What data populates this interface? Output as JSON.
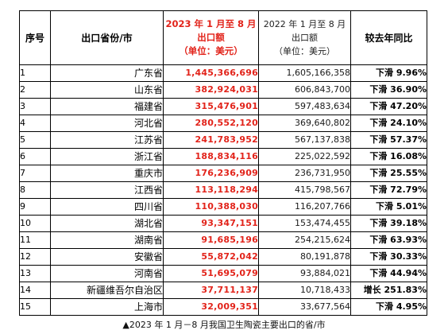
{
  "table": {
    "headers": {
      "seq": "序号",
      "province": "出口省份/市",
      "y2023": [
        "2023 年 1 月至 8 月",
        "出口额",
        "（单位：美元）"
      ],
      "y2022": [
        "2022 年 1 月至 8 月",
        "出口额",
        "（单位：美元）"
      ],
      "yoy": "较去年同比"
    },
    "rows": [
      {
        "seq": "1",
        "province": "广东省",
        "v2023": "1,445,366,696",
        "v2022": "1,605,166,358",
        "yoy": "下滑 9.96%"
      },
      {
        "seq": "2",
        "province": "山东省",
        "v2023": "382,924,031",
        "v2022": "606,843,700",
        "yoy": "下滑 36.90%"
      },
      {
        "seq": "3",
        "province": "福建省",
        "v2023": "315,476,901",
        "v2022": "597,483,634",
        "yoy": "下滑 47.20%"
      },
      {
        "seq": "4",
        "province": "河北省",
        "v2023": "280,552,120",
        "v2022": "369,640,802",
        "yoy": "下滑 24.10%"
      },
      {
        "seq": "5",
        "province": "江苏省",
        "v2023": "241,783,952",
        "v2022": "567,137,838",
        "yoy": "下滑 57.37%"
      },
      {
        "seq": "6",
        "province": "浙江省",
        "v2023": "188,834,116",
        "v2022": "225,022,592",
        "yoy": "下滑 16.08%"
      },
      {
        "seq": "7",
        "province": "重庆市",
        "v2023": "176,236,909",
        "v2022": "236,731,950",
        "yoy": "下滑 25.55%"
      },
      {
        "seq": "8",
        "province": "江西省",
        "v2023": "113,118,294",
        "v2022": "415,798,567",
        "yoy": "下滑 72.79%"
      },
      {
        "seq": "9",
        "province": "四川省",
        "v2023": "110,388,030",
        "v2022": "116,207,766",
        "yoy": "下滑 5.01%"
      },
      {
        "seq": "10",
        "province": "湖北省",
        "v2023": "93,347,151",
        "v2022": "153,474,455",
        "yoy": "下滑 39.18%"
      },
      {
        "seq": "11",
        "province": "湖南省",
        "v2023": "91,685,196",
        "v2022": "254,215,624",
        "yoy": "下滑 63.93%"
      },
      {
        "seq": "12",
        "province": "安徽省",
        "v2023": "55,872,042",
        "v2022": "80,191,878",
        "yoy": "下滑 30.33%"
      },
      {
        "seq": "13",
        "province": "河南省",
        "v2023": "51,695,079",
        "v2022": "93,884,021",
        "yoy": "下滑 44.94%"
      },
      {
        "seq": "14",
        "province": "新疆维吾尔自治区",
        "v2023": "37,711,137",
        "v2022": "10,718,433",
        "yoy": "增长 251.83%"
      },
      {
        "seq": "15",
        "province": "上海市",
        "v2023": "32,009,351",
        "v2022": "33,677,564",
        "yoy": "下滑 4.95%"
      }
    ]
  },
  "caption": "▲2023 年 1 月－8 月我国卫生陶瓷主要出口的省/市",
  "colors": {
    "highlight_red": "#e2231a",
    "border": "#000000"
  }
}
